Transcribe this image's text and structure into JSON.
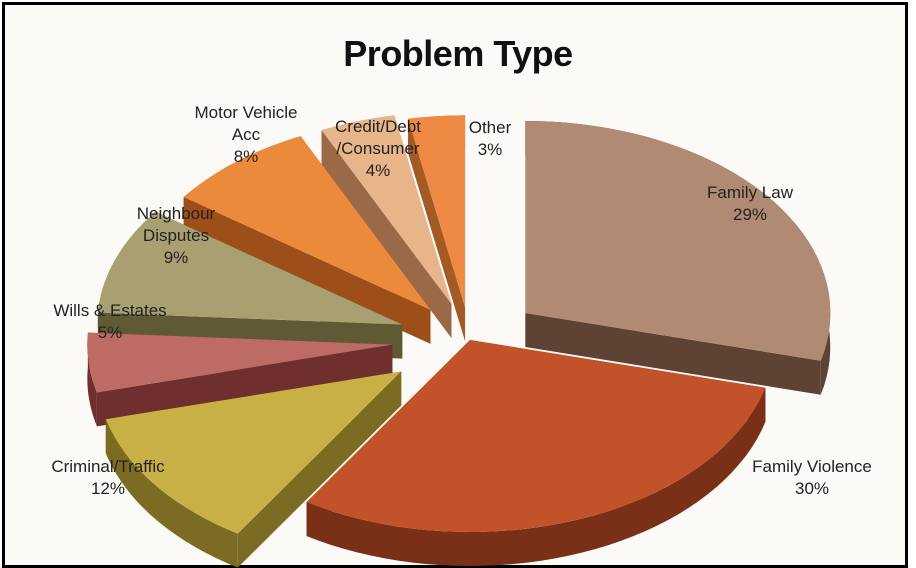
{
  "chart_data": {
    "type": "pie",
    "title": "Problem Type",
    "label_sep": "\n",
    "slices": [
      {
        "label": "Family Law",
        "value": 29,
        "value_label": "29%",
        "color": "#b08a72",
        "side": "#5e4334"
      },
      {
        "label": "Family Violence",
        "value": 30,
        "value_label": "30%",
        "color": "#c2522a",
        "side": "#7a2f17"
      },
      {
        "label": "Criminal/Traffic",
        "value": 12,
        "value_label": "12%",
        "color": "#c9b046",
        "side": "#7c6b22"
      },
      {
        "label": "Wills & Estates",
        "value": 5,
        "value_label": "5%",
        "color": "#be6b66",
        "side": "#6e2f2e"
      },
      {
        "label": "Neighbour\nDisputes",
        "value": 9,
        "value_label": "9%",
        "color": "#a9a072",
        "side": "#5f5a34"
      },
      {
        "label": "Motor Vehicle\nAcc",
        "value": 8,
        "value_label": "8%",
        "color": "#ec8a3c",
        "side": "#9e4e18"
      },
      {
        "label": "Credit/Debt\n/Consumer",
        "value": 4,
        "value_label": "4%",
        "color": "#e8b489",
        "side": "#9a6a46"
      },
      {
        "label": "Other",
        "value": 3,
        "value_label": "3%",
        "color": "#ef8a45",
        "side": "#a45a25"
      }
    ],
    "legend": "none"
  }
}
